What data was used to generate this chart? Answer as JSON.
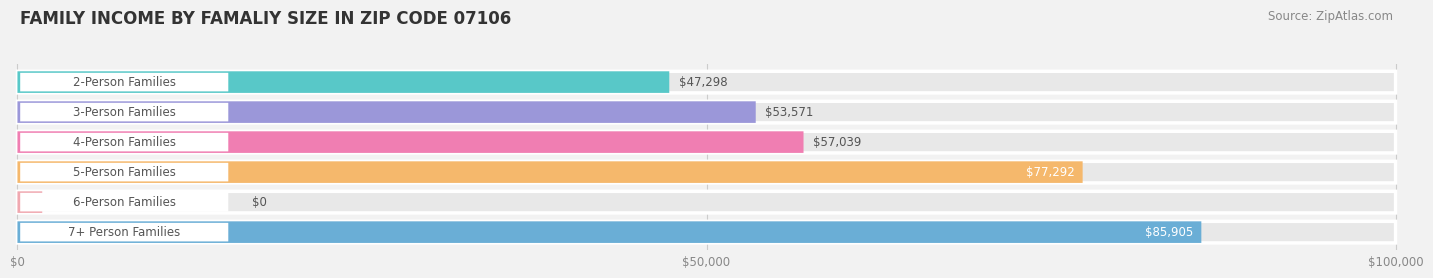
{
  "title": "FAMILY INCOME BY FAMALIY SIZE IN ZIP CODE 07106",
  "source": "Source: ZipAtlas.com",
  "categories": [
    "2-Person Families",
    "3-Person Families",
    "4-Person Families",
    "5-Person Families",
    "6-Person Families",
    "7+ Person Families"
  ],
  "values": [
    47298,
    53571,
    57039,
    77292,
    0,
    85905
  ],
  "bar_colors": [
    "#58C8C8",
    "#9B97D9",
    "#F07EB2",
    "#F5B86C",
    "#F0A8B0",
    "#6AAED6"
  ],
  "value_labels": [
    "$47,298",
    "$53,571",
    "$57,039",
    "$77,292",
    "$0",
    "$85,905"
  ],
  "xmax": 100000,
  "xticks": [
    0,
    50000,
    100000
  ],
  "xtick_labels": [
    "$0",
    "$50,000",
    "$100,000"
  ],
  "bg_color": "#f2f2f2",
  "bar_track_color": "#e8e8e8",
  "bar_track_edge": "#ffffff",
  "label_box_color": "#ffffff",
  "title_fontsize": 12,
  "source_fontsize": 8.5,
  "label_fontsize": 8.5,
  "value_fontsize": 8.5,
  "value_inside_color": "#ffffff",
  "value_outside_color": "#555555",
  "label_text_color": "#555555"
}
